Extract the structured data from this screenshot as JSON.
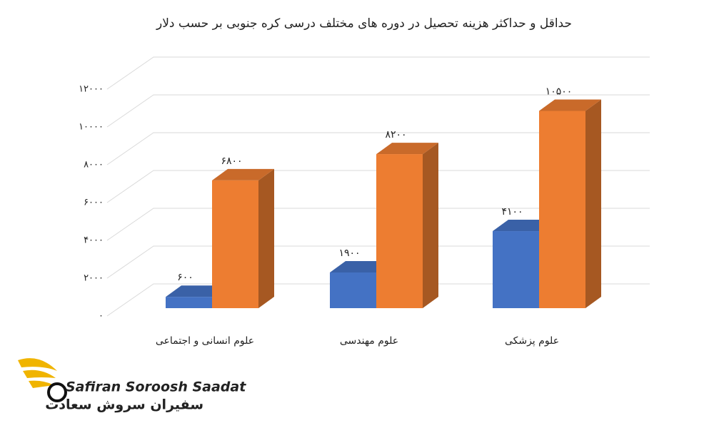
{
  "chart_data": {
    "type": "bar3d",
    "title": "حداقل و حداکثر هزینه تحصیل در دوره های مختلف درسی کره جنوبی بر حسب دلار",
    "categories": [
      "علوم انسانی و اجتماعی",
      "علوم مهندسی",
      "علوم پزشکی"
    ],
    "series": [
      {
        "color": "#4472c4",
        "values": [
          600,
          1900,
          4100
        ],
        "value_labels": [
          "۶۰۰",
          "۱۹۰۰",
          "۴۱۰۰"
        ]
      },
      {
        "color": "#ed7d31",
        "values": [
          6800,
          8200,
          10500
        ],
        "value_labels": [
          "۶۸۰۰",
          "۸۲۰۰",
          "۱۰۵۰۰"
        ]
      }
    ],
    "ylim": [
      0,
      12000
    ],
    "yticks": [
      {
        "value": 0,
        "label": "۰"
      },
      {
        "value": 2000,
        "label": "۲۰۰۰"
      },
      {
        "value": 4000,
        "label": "۴۰۰۰"
      },
      {
        "value": 6000,
        "label": "۶۰۰۰"
      },
      {
        "value": 8000,
        "label": "۸۰۰۰"
      },
      {
        "value": 10000,
        "label": "۱۰۰۰۰"
      },
      {
        "value": 12000,
        "label": "۱۲۰۰۰"
      }
    ],
    "grid": true
  },
  "logo": {
    "latin": "Safiran Soroosh Saadat",
    "persian": "سفیران سروش سعادت"
  }
}
